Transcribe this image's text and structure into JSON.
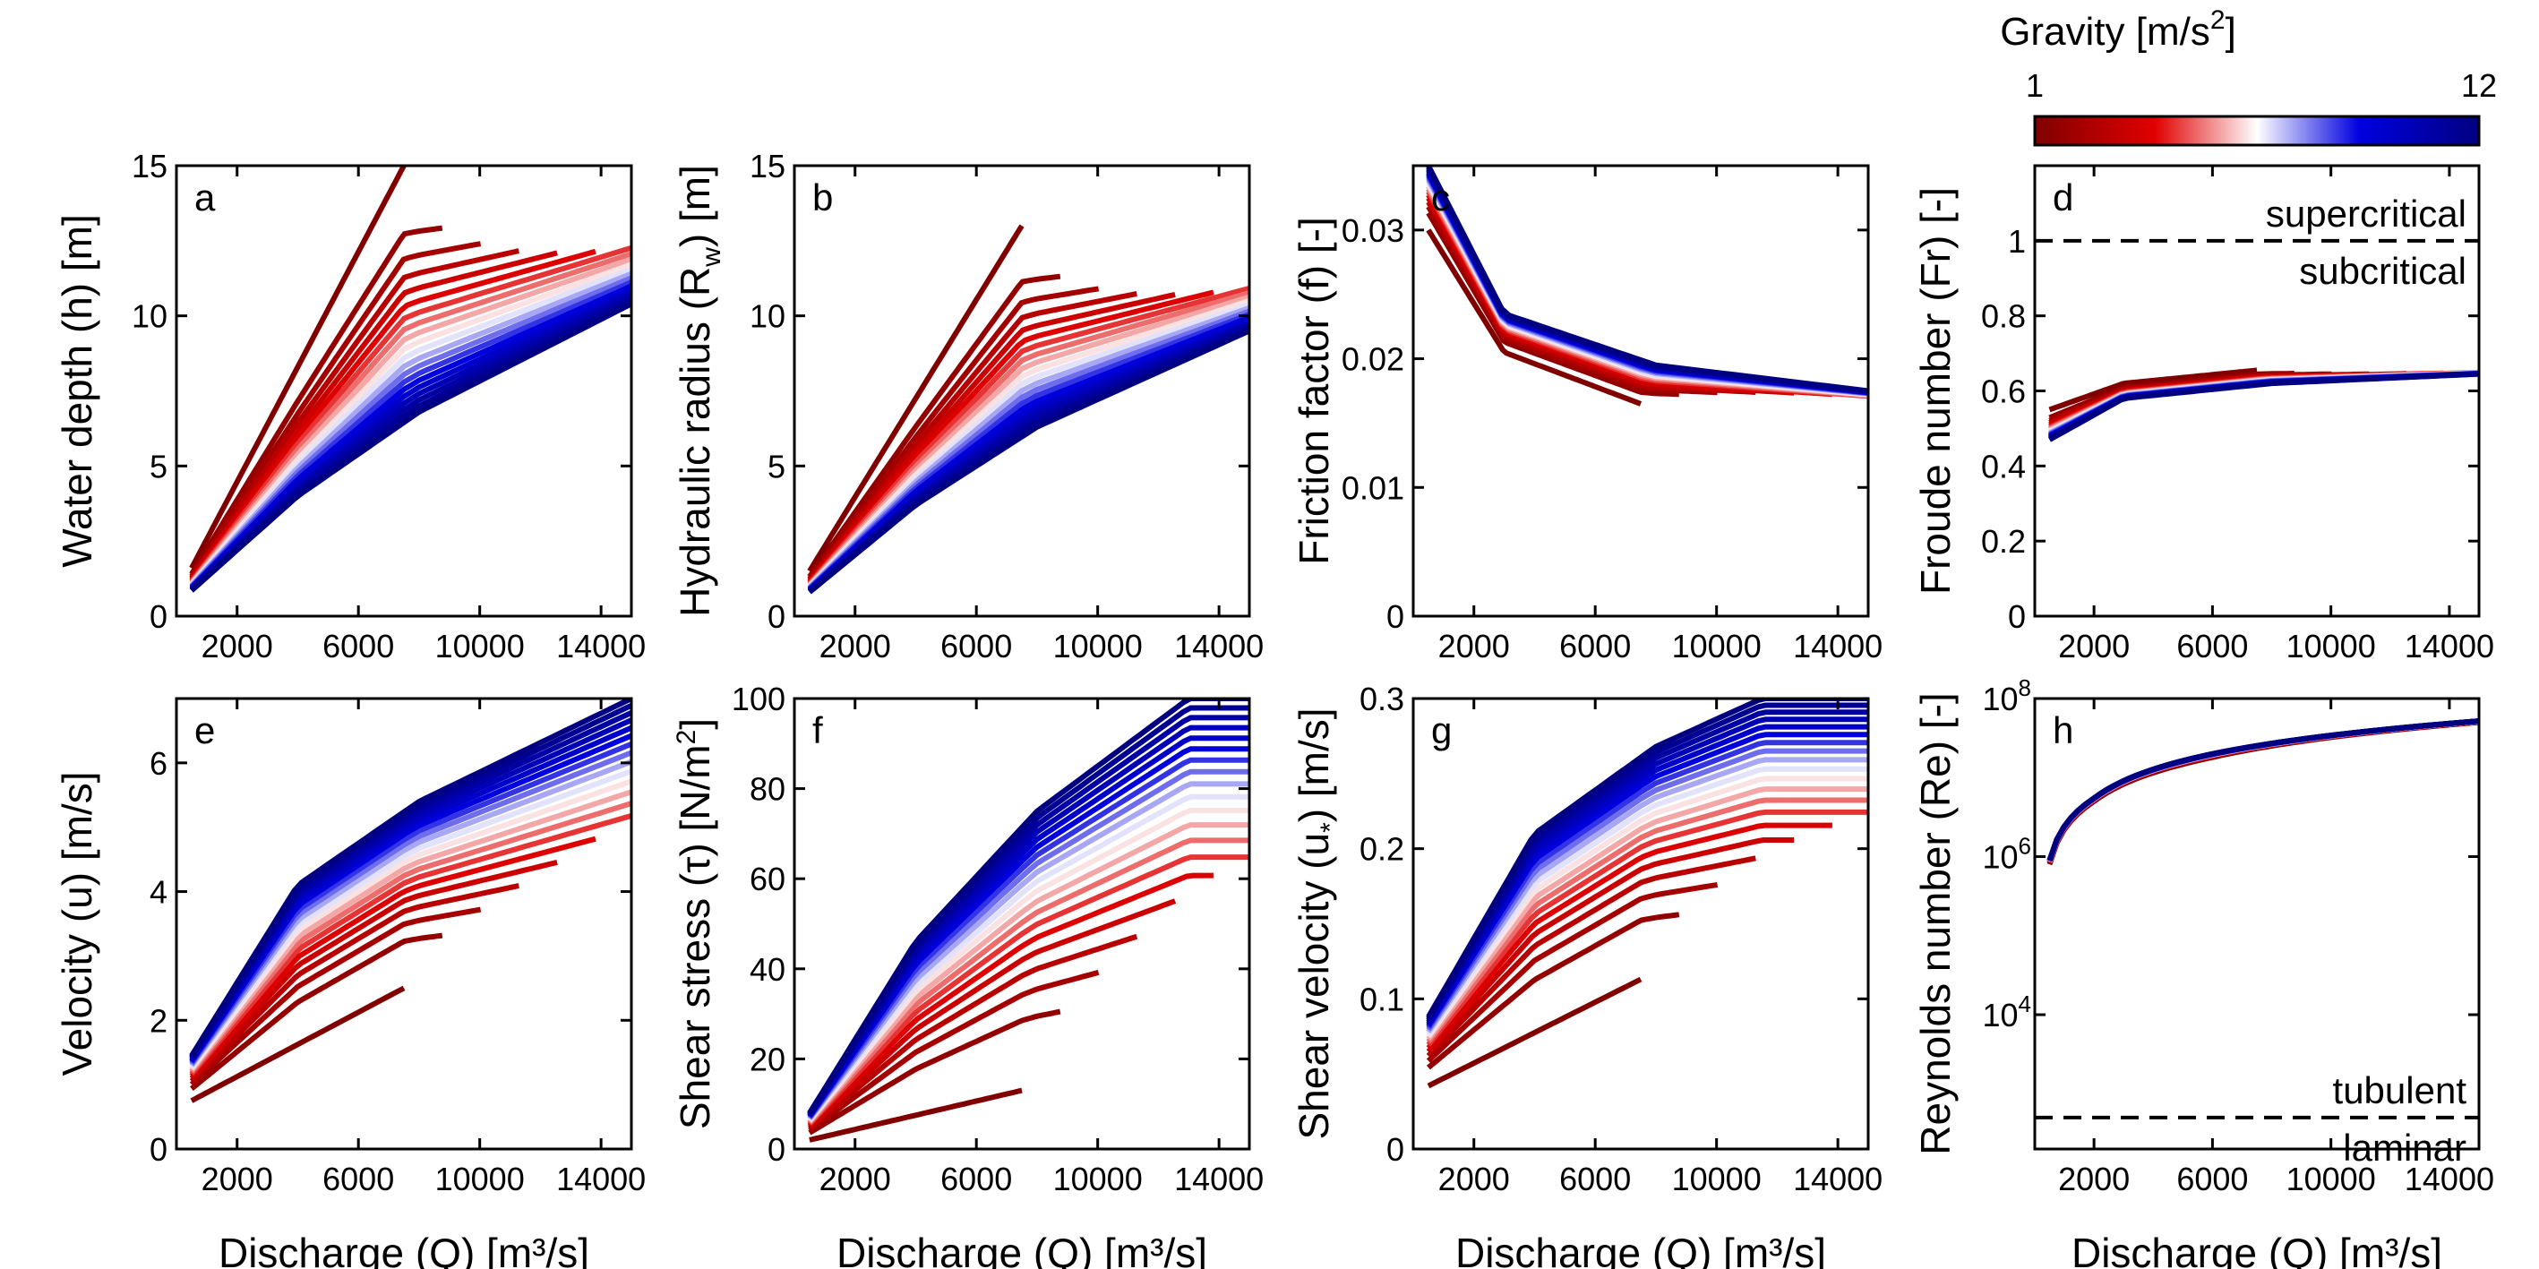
{
  "colorbar": {
    "title_main": "Gravity [m/s",
    "title_sup": "2",
    "title_close": "]",
    "min_label": "1",
    "max_label": "12",
    "min": 1,
    "max": 12,
    "colors": [
      "#800000",
      "#e00000",
      "#ffffff",
      "#0000e0",
      "#000080"
    ]
  },
  "chart_data": [
    {
      "id": "a",
      "panel_label": "a",
      "type": "line",
      "ylabel": "Water depth (h) [m]",
      "xlabel": "",
      "xlim": [
        0,
        15000
      ],
      "ylim": [
        0,
        15
      ],
      "scale": "linear",
      "xticks": [
        2000,
        6000,
        10000,
        14000
      ],
      "xtick_labels": [
        "2000",
        "6000",
        "10000",
        "14000"
      ],
      "yticks": [
        0,
        5,
        10,
        15
      ],
      "ytick_labels": [
        "0",
        "5",
        "10",
        "15"
      ],
      "series": [
        {
          "gravity": 1,
          "values": [
            [
              500,
              1.6
            ],
            [
              7500,
              15.0
            ]
          ]
        },
        {
          "gravity": 12,
          "values": [
            [
              500,
              0.85
            ],
            [
              4000,
              4.0
            ],
            [
              8000,
              6.8
            ],
            [
              15000,
              10.4
            ]
          ]
        }
      ]
    },
    {
      "id": "b",
      "panel_label": "b",
      "type": "line",
      "ylabel_main": "Hydraulic radius (R",
      "ylabel_sub": "w",
      "ylabel_tail": ") [m]",
      "xlabel": "",
      "xlim": [
        0,
        15000
      ],
      "ylim": [
        0,
        15
      ],
      "scale": "linear",
      "xticks": [
        2000,
        6000,
        10000,
        14000
      ],
      "xtick_labels": [
        "2000",
        "6000",
        "10000",
        "14000"
      ],
      "yticks": [
        0,
        5,
        10,
        15
      ],
      "ytick_labels": [
        "0",
        "5",
        "10",
        "15"
      ],
      "series": [
        {
          "gravity": 1,
          "values": [
            [
              500,
              1.5
            ],
            [
              7500,
              13.0
            ]
          ]
        },
        {
          "gravity": 12,
          "values": [
            [
              500,
              0.8
            ],
            [
              4000,
              3.7
            ],
            [
              8000,
              6.3
            ],
            [
              15000,
              9.5
            ]
          ]
        }
      ]
    },
    {
      "id": "c",
      "panel_label": "c",
      "type": "line",
      "ylabel": "Friction factor (f) [-]",
      "xlabel": "",
      "xlim": [
        0,
        15000
      ],
      "ylim": [
        0,
        0.035
      ],
      "scale": "linear",
      "xticks": [
        2000,
        6000,
        10000,
        14000
      ],
      "xtick_labels": [
        "2000",
        "6000",
        "10000",
        "14000"
      ],
      "yticks": [
        0,
        0.01,
        0.02,
        0.03
      ],
      "ytick_labels": [
        "0",
        "0.01",
        "0.02",
        "0.03"
      ],
      "series": [
        {
          "gravity": 1,
          "values": [
            [
              500,
              0.03
            ],
            [
              3000,
              0.0205
            ],
            [
              7500,
              0.0165
            ]
          ]
        },
        {
          "gravity": 12,
          "values": [
            [
              500,
              0.035
            ],
            [
              3000,
              0.0235
            ],
            [
              8000,
              0.0195
            ],
            [
              15000,
              0.0175
            ]
          ]
        }
      ]
    },
    {
      "id": "d",
      "panel_label": "d",
      "type": "line",
      "ylabel": "Froude number (Fr) [-]",
      "xlabel": "",
      "xlim": [
        0,
        15000
      ],
      "ylim": [
        0,
        1.2
      ],
      "scale": "linear",
      "xticks": [
        2000,
        6000,
        10000,
        14000
      ],
      "xtick_labels": [
        "2000",
        "6000",
        "10000",
        "14000"
      ],
      "yticks": [
        0,
        0.2,
        0.4,
        0.6,
        0.8,
        1
      ],
      "ytick_labels": [
        "0",
        "0.2",
        "0.4",
        "0.6",
        "0.8",
        "1"
      ],
      "series": [
        {
          "gravity": 1,
          "values": [
            [
              500,
              0.55
            ],
            [
              3000,
              0.62
            ],
            [
              7500,
              0.655
            ]
          ]
        },
        {
          "gravity": 12,
          "values": [
            [
              500,
              0.47
            ],
            [
              3000,
              0.58
            ],
            [
              8000,
              0.62
            ],
            [
              15000,
              0.645
            ]
          ]
        }
      ],
      "hline": 1,
      "annotations": {
        "above": "supercritical",
        "below": "subcritical"
      }
    },
    {
      "id": "e",
      "panel_label": "e",
      "type": "line",
      "ylabel": "Velocity (u) [m/s]",
      "xlabel": "Discharge (Q) [m³/s]",
      "xlim": [
        0,
        15000
      ],
      "ylim": [
        0,
        7
      ],
      "scale": "linear",
      "xticks": [
        2000,
        6000,
        10000,
        14000
      ],
      "xtick_labels": [
        "2000",
        "6000",
        "10000",
        "14000"
      ],
      "yticks": [
        0,
        2,
        4,
        6
      ],
      "ytick_labels": [
        "0",
        "2",
        "4",
        "6"
      ],
      "series": [
        {
          "gravity": 1,
          "values": [
            [
              500,
              0.75
            ],
            [
              7500,
              2.5
            ]
          ]
        },
        {
          "gravity": 12,
          "values": [
            [
              500,
              1.45
            ],
            [
              4000,
              4.1
            ],
            [
              8000,
              5.4
            ],
            [
              15000,
              7.0
            ]
          ]
        }
      ]
    },
    {
      "id": "f",
      "panel_label": "f",
      "type": "line",
      "ylabel_main": "Shear stress (τ) [N/m",
      "ylabel_sup": "2",
      "ylabel_tail": "]",
      "xlabel": "Discharge (Q) [m³/s]",
      "xlim": [
        0,
        15000
      ],
      "ylim": [
        0,
        100
      ],
      "scale": "linear",
      "xticks": [
        2000,
        6000,
        10000,
        14000
      ],
      "xtick_labels": [
        "2000",
        "6000",
        "10000",
        "14000"
      ],
      "yticks": [
        0,
        20,
        40,
        60,
        80,
        100
      ],
      "ytick_labels": [
        "0",
        "20",
        "40",
        "60",
        "80",
        "100"
      ],
      "series": [
        {
          "gravity": 1,
          "values": [
            [
              500,
              2.0
            ],
            [
              7500,
              13.0
            ]
          ]
        },
        {
          "gravity": 12,
          "values": [
            [
              500,
              8.0
            ],
            [
              4000,
              46.0
            ],
            [
              8000,
              75.0
            ],
            [
              13000,
              100.0
            ]
          ]
        }
      ]
    },
    {
      "id": "g",
      "panel_label": "g",
      "type": "line",
      "ylabel_main": "Shear velocity (u",
      "ylabel_sub": "*",
      "ylabel_tail": ") [m/s]",
      "xlabel": "Discharge (Q) [m³/s]",
      "xlim": [
        0,
        15000
      ],
      "ylim": [
        0,
        0.3
      ],
      "scale": "linear",
      "xticks": [
        2000,
        6000,
        10000,
        14000
      ],
      "xtick_labels": [
        "2000",
        "6000",
        "10000",
        "14000"
      ],
      "yticks": [
        0,
        0.1,
        0.2,
        0.3
      ],
      "ytick_labels": [
        "0",
        "0.1",
        "0.2",
        "0.3"
      ],
      "series": [
        {
          "gravity": 1,
          "values": [
            [
              500,
              0.042
            ],
            [
              7500,
              0.113
            ]
          ]
        },
        {
          "gravity": 12,
          "values": [
            [
              500,
              0.088
            ],
            [
              4000,
              0.21
            ],
            [
              8000,
              0.268
            ],
            [
              11500,
              0.3
            ]
          ]
        }
      ]
    },
    {
      "id": "h",
      "panel_label": "h",
      "type": "line",
      "ylabel": "Reynolds number (Re) [-]",
      "xlabel": "Discharge (Q) [m³/s]",
      "xlim": [
        0,
        15000
      ],
      "ylim": [
        200,
        100000000
      ],
      "scale": "log",
      "xticks": [
        2000,
        6000,
        10000,
        14000
      ],
      "xtick_labels": [
        "2000",
        "6000",
        "10000",
        "14000"
      ],
      "yticks": [
        10000,
        1000000,
        100000000
      ],
      "ytick_labels": [
        "10",
        "10",
        "10"
      ],
      "ytick_exponents": [
        "4",
        "6",
        "8"
      ],
      "series": [
        {
          "gravity": 1,
          "values": [
            [
              500,
              800000
            ],
            [
              2000,
              5000000
            ],
            [
              6000,
              18000000
            ],
            [
              15000,
              50000000
            ]
          ]
        },
        {
          "gravity": 12,
          "values": [
            [
              500,
              900000
            ],
            [
              2000,
              5500000
            ],
            [
              6000,
              20000000
            ],
            [
              15000,
              52000000
            ]
          ]
        }
      ],
      "hline": 500,
      "annotations": {
        "above": "tubulent",
        "below": "laminar"
      }
    }
  ],
  "curve_count": 20,
  "gravity_values_note": ""
}
